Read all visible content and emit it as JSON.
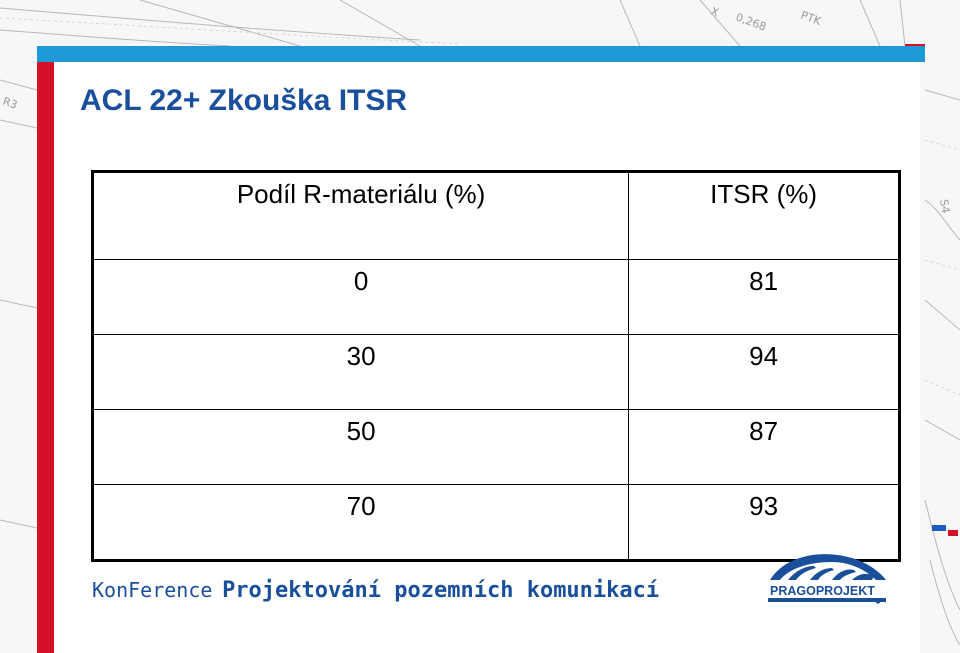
{
  "slide": {
    "title": "ACL 22+ Zkouška ITSR"
  },
  "table": {
    "headers": [
      "Podíl R-materiálu (%)",
      "ITSR (%)"
    ],
    "rows": [
      [
        "0",
        "81"
      ],
      [
        "30",
        "94"
      ],
      [
        "50",
        "87"
      ],
      [
        "70",
        "93"
      ]
    ]
  },
  "footer": {
    "conference_prefix": "KonFerence",
    "conference_name": "Projektování pozemních komunikací",
    "logo_text": "PRAGOPROJEKT"
  },
  "colors": {
    "title_blue": "#1a4f9c",
    "top_bar": "#1d9ad6",
    "left_bar": "#d7102a"
  },
  "icons": {
    "logo": "bridge-arches-logo"
  }
}
